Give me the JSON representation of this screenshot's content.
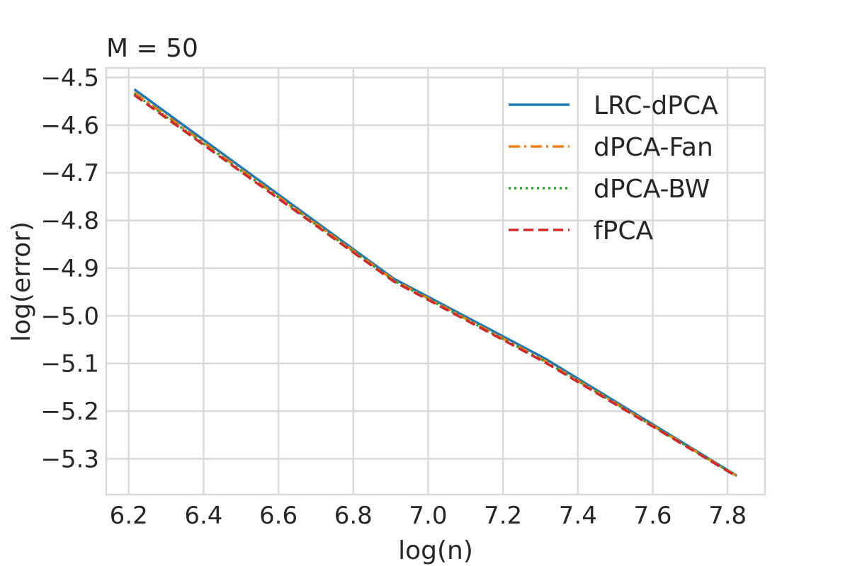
{
  "chart_data": {
    "type": "line",
    "title": "M = 50",
    "xlabel": "log(n)",
    "ylabel": "log(error)",
    "xlim": [
      6.14,
      7.9
    ],
    "ylim": [
      -5.375,
      -4.48
    ],
    "xticks": [
      6.2,
      6.4,
      6.6,
      6.8,
      7.0,
      7.2,
      7.4,
      7.6,
      7.8
    ],
    "xtick_labels": [
      "6.2",
      "6.4",
      "6.6",
      "6.8",
      "7.0",
      "7.2",
      "7.4",
      "7.6",
      "7.8"
    ],
    "yticks": [
      -4.5,
      -4.6,
      -4.7,
      -4.8,
      -4.9,
      -5.0,
      -5.1,
      -5.2,
      -5.3
    ],
    "ytick_labels": [
      "−4.5",
      "−4.6",
      "−4.7",
      "−4.8",
      "−4.9",
      "−5.0",
      "−5.1",
      "−5.2",
      "−5.3"
    ],
    "grid": true,
    "legend_position": "top-right",
    "x": [
      6.215,
      6.908,
      7.313,
      7.824
    ],
    "series": [
      {
        "name": "LRC-dPCA",
        "color": "#1f77b4",
        "style": "solid",
        "values": [
          -4.525,
          -4.922,
          -5.09,
          -5.335
        ]
      },
      {
        "name": "dPCA-Fan",
        "color": "#ff7f0e",
        "style": "dashdot",
        "values": [
          -4.532,
          -4.925,
          -5.095,
          -5.336
        ]
      },
      {
        "name": "dPCA-BW",
        "color": "#2ca02c",
        "style": "dotted",
        "values": [
          -4.534,
          -4.926,
          -5.096,
          -5.336
        ]
      },
      {
        "name": "fPCA",
        "color": "#d62728",
        "style": "dashed",
        "values": [
          -4.537,
          -4.928,
          -5.098,
          -5.337
        ]
      }
    ]
  }
}
